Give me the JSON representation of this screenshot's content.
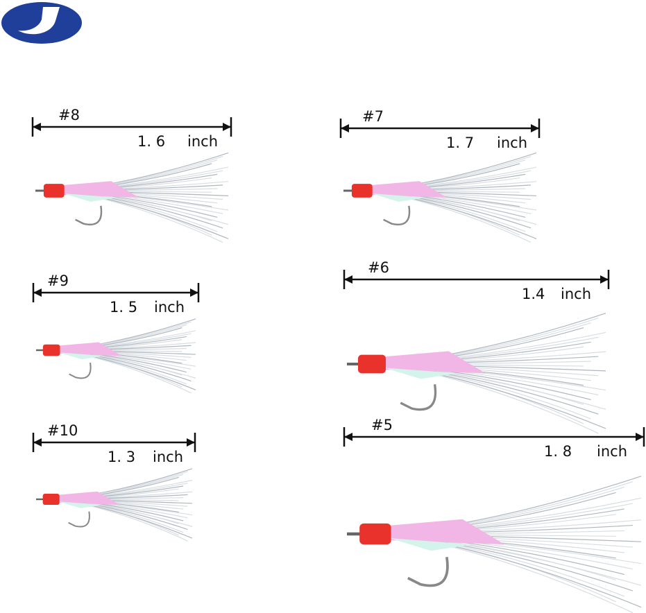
{
  "items": [
    {
      "size": "#8",
      "length": "1. 6",
      "unit": "inch"
    },
    {
      "size": "#7",
      "length": "1. 7",
      "unit": "inch"
    },
    {
      "size": "#9",
      "length": "1. 5",
      "unit": "inch"
    },
    {
      "size": "#6",
      "length": "1.4",
      "unit": "inch"
    },
    {
      "size": "#10",
      "length": "1. 3",
      "unit": "inch"
    },
    {
      "size": "#5",
      "length": "1. 8",
      "unit": "inch"
    }
  ]
}
